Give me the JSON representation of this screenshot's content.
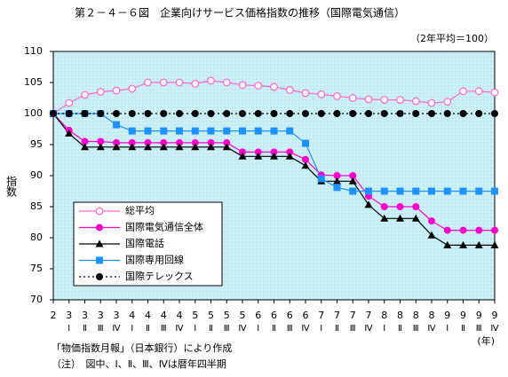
{
  "chart_data": {
    "type": "line",
    "title": "第２－４－６図　企業向けサービス価格指数の推移（国際電気通信）",
    "subtitle": "（2年平均＝100）",
    "y_label": "指数",
    "x_unit_label": "(年)",
    "categories": [
      "2",
      "3",
      "3",
      "3",
      "3",
      "4",
      "4",
      "4",
      "4",
      "5",
      "5",
      "5",
      "5",
      "6",
      "6",
      "6",
      "6",
      "7",
      "7",
      "7",
      "7",
      "8",
      "8",
      "8",
      "8",
      "9",
      "9",
      "9",
      "9"
    ],
    "category_sublabels": [
      null,
      "Ⅰ",
      "Ⅱ",
      "Ⅲ",
      "Ⅳ",
      "Ⅰ",
      "Ⅱ",
      "Ⅲ",
      "Ⅳ",
      "Ⅰ",
      "Ⅱ",
      "Ⅲ",
      "Ⅳ",
      "Ⅰ",
      "Ⅱ",
      "Ⅲ",
      "Ⅳ",
      "Ⅰ",
      "Ⅱ",
      "Ⅲ",
      "Ⅳ",
      "Ⅰ",
      "Ⅱ",
      "Ⅲ",
      "Ⅳ",
      "Ⅰ",
      "Ⅱ",
      "Ⅲ",
      "Ⅳ"
    ],
    "series": [
      {
        "name": "総平均",
        "color": "#ff66cc",
        "marker": "circle-open",
        "dash": "solid",
        "values": [
          100,
          101.7,
          103,
          103.5,
          103.7,
          104,
          105,
          105,
          105,
          104.8,
          105.3,
          105,
          104.6,
          104.5,
          104.3,
          103.8,
          103.3,
          103.1,
          102.8,
          102.5,
          102.3,
          102.2,
          102.2,
          102,
          101.7,
          101.9,
          103.6,
          103.6,
          103.4
        ]
      },
      {
        "name": "国際電気通信全体",
        "color": "#ff00cc",
        "marker": "circle",
        "dash": "solid",
        "values": [
          100,
          97.3,
          95.5,
          95.5,
          95.3,
          95.3,
          95.3,
          95.3,
          95.3,
          95.3,
          95.3,
          95.3,
          93.8,
          93.8,
          93.8,
          93.8,
          92.6,
          90.1,
          90,
          90,
          86.7,
          85,
          85,
          85,
          82.7,
          81.2,
          81.2,
          81.2,
          81.2
        ]
      },
      {
        "name": "国際電話",
        "color": "#000000",
        "marker": "triangle",
        "dash": "solid",
        "values": [
          100,
          96.8,
          94.6,
          94.6,
          94.6,
          94.6,
          94.6,
          94.6,
          94.6,
          94.6,
          94.6,
          94.6,
          93.1,
          93.1,
          93.1,
          93.1,
          91.6,
          89.1,
          89.1,
          89.1,
          85.3,
          83.1,
          83.1,
          83.1,
          80.4,
          78.8,
          78.8,
          78.8,
          78.8
        ]
      },
      {
        "name": "国際専用回線",
        "color": "#1e90ff",
        "marker": "square",
        "dash": "solid",
        "values": [
          100,
          100,
          100,
          100,
          98.2,
          97.2,
          97.2,
          97.2,
          97.2,
          97.2,
          97.2,
          97.2,
          97.2,
          97.2,
          97.2,
          97.2,
          95.2,
          89.5,
          88.1,
          87.5,
          87.5,
          87.5,
          87.5,
          87.5,
          87.5,
          87.5,
          87.5,
          87.5,
          87.5
        ]
      },
      {
        "name": "国際テレックス",
        "color": "#000000",
        "marker": "circle",
        "dash": "dotted",
        "values": [
          100,
          100,
          100,
          100,
          100,
          100,
          100,
          100,
          100,
          100,
          100,
          100,
          100,
          100,
          100,
          100,
          100,
          100,
          100,
          100,
          100,
          100,
          100,
          100,
          100,
          100,
          100,
          100,
          100
        ]
      }
    ],
    "ylim": [
      70,
      110
    ],
    "yticks": [
      70,
      75,
      80,
      85,
      90,
      95,
      100,
      105,
      110
    ],
    "grid": false,
    "legend": "lower left",
    "plot_background": "#cdeff6",
    "notes": [
      "「物価指数月報」（日本銀行）により作成",
      "（注）　図中、Ⅰ、Ⅱ、Ⅲ、Ⅳは暦年四半期"
    ]
  }
}
